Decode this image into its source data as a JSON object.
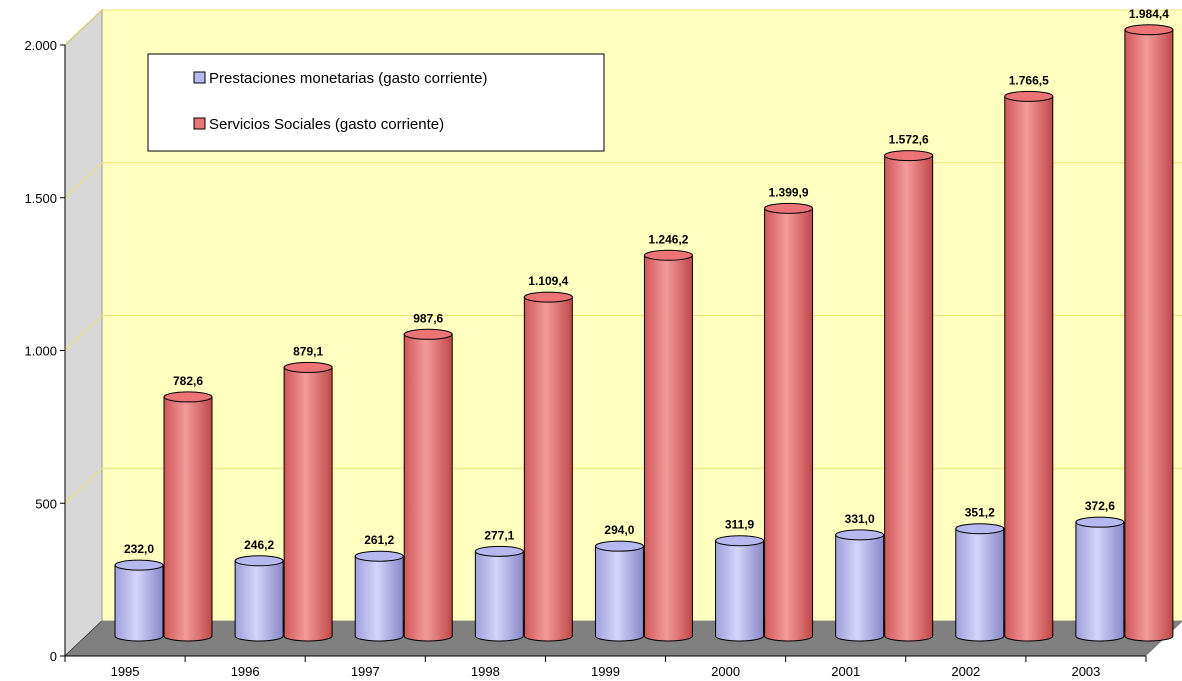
{
  "chart_data": {
    "type": "bar",
    "categories": [
      "1995",
      "1996",
      "1997",
      "1998",
      "1999",
      "2000",
      "2001",
      "2002",
      "2003"
    ],
    "series": [
      {
        "name": "Prestaciones monetarias (gasto corriente)",
        "values": [
          232.0,
          246.2,
          261.2,
          277.1,
          294.0,
          311.9,
          331.0,
          351.2,
          372.6
        ],
        "labels": [
          "232,0",
          "246,2",
          "261,2",
          "277,1",
          "294,0",
          "311,9",
          "331,0",
          "351,2",
          "372,6"
        ],
        "color": "#b8b8f0"
      },
      {
        "name": "Servicios Sociales (gasto corriente)",
        "values": [
          782.6,
          879.1,
          987.6,
          1109.4,
          1246.2,
          1399.9,
          1572.6,
          1766.5,
          1984.4
        ],
        "labels": [
          "782,6",
          "879,1",
          "987,6",
          "1.109,4",
          "1.246,2",
          "1.399,9",
          "1.572,6",
          "1.766,5",
          "1.984,4"
        ],
        "color": "#ec7474"
      }
    ],
    "y_ticks": [
      0,
      500,
      1000,
      1500,
      2000
    ],
    "y_tick_labels": [
      "0",
      "500",
      "1.000",
      "1.500",
      "2.000"
    ],
    "ylim": [
      0,
      2000
    ],
    "grid": true,
    "legend_position": "top-left",
    "colors": {
      "wall": "#ffffc0",
      "side_wall": "#d8d8d8",
      "floor": "#808080",
      "gridline": "#f0e070"
    }
  }
}
